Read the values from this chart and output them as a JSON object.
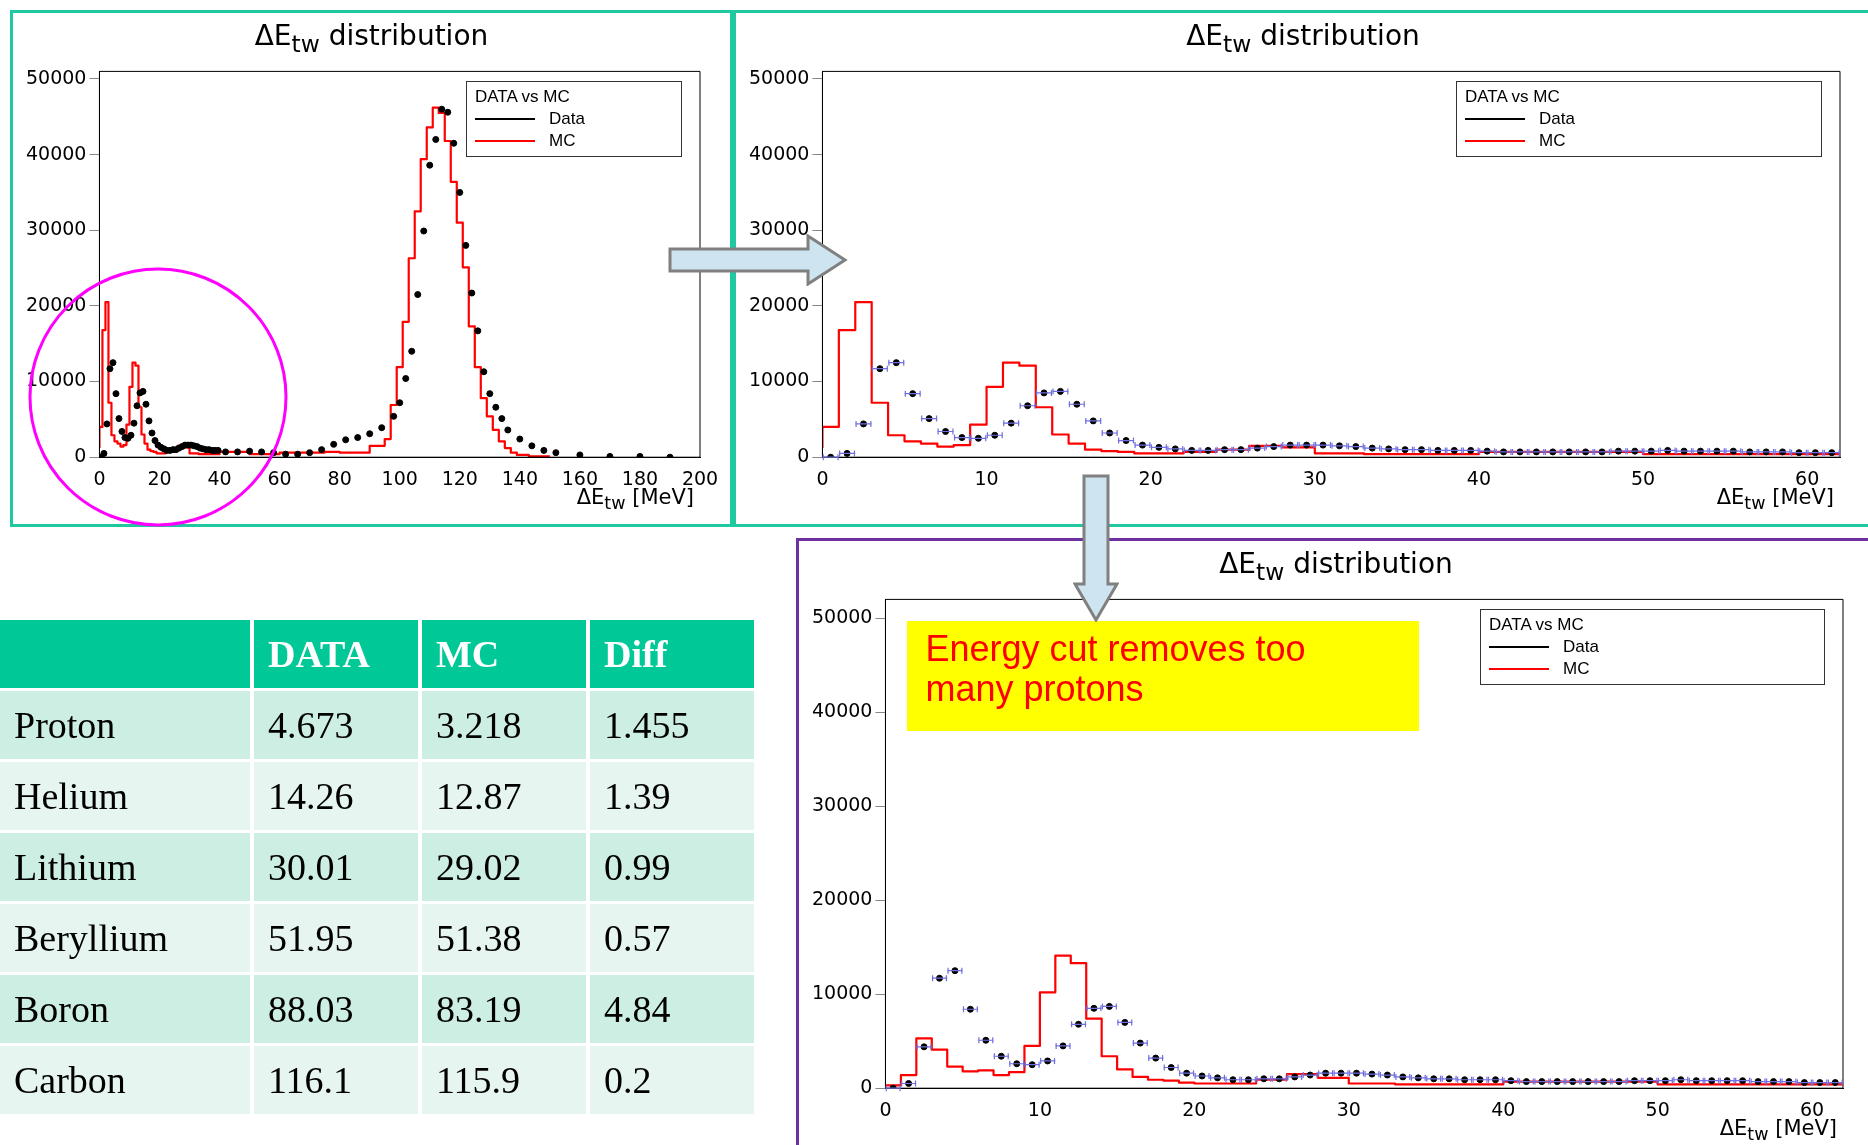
{
  "chart_data": [
    {
      "type": "step",
      "title": "ΔE$_{tw}$ distribution",
      "xlabel": "ΔE$_{tw}$ [MeV]",
      "legend_title": "DATA vs MC",
      "legend": "top right",
      "xlim": [
        0,
        200
      ],
      "ylim": [
        0,
        51000
      ],
      "xticks": [
        0,
        20,
        40,
        60,
        80,
        100,
        120,
        140,
        160,
        180,
        200
      ],
      "yticks": [
        0,
        10000,
        20000,
        30000,
        40000,
        50000
      ],
      "series": [
        {
          "name": "Data",
          "type": "scatter",
          "marker": "circle",
          "color": "#000000",
          "x": [
            0.5,
            1.5,
            2.5,
            3.5,
            4.5,
            5.5,
            6.5,
            7.5,
            8.5,
            9.5,
            10.5,
            11.5,
            12.5,
            13.5,
            14.5,
            15.5,
            16.5,
            17.5,
            18.5,
            19.5,
            20.5,
            21.5,
            22.5,
            23.5,
            24.5,
            25.5,
            26.5,
            27.5,
            28.5,
            29.5,
            30.5,
            31.5,
            32.5,
            33.5,
            34.5,
            35.5,
            36.5,
            37.5,
            38.5,
            39.5,
            42,
            46,
            50,
            54,
            58,
            62,
            66,
            70,
            74,
            78,
            82,
            86,
            90,
            94,
            98,
            100,
            102,
            104,
            106,
            108,
            110,
            112,
            114,
            116,
            118,
            120,
            122,
            124,
            126,
            128,
            130,
            132,
            134,
            136,
            140,
            144,
            148,
            152,
            160,
            170,
            180,
            190
          ],
          "values": [
            0,
            500,
            4400,
            11700,
            12500,
            8400,
            5100,
            3400,
            2600,
            2500,
            2900,
            4500,
            6800,
            8500,
            8700,
            7000,
            4800,
            3200,
            2200,
            1600,
            1300,
            1100,
            900,
            900,
            1000,
            1000,
            1200,
            1400,
            1600,
            1600,
            1600,
            1500,
            1400,
            1200,
            1100,
            1000,
            1000,
            900,
            900,
            900,
            700,
            700,
            800,
            700,
            600,
            400,
            400,
            600,
            1000,
            1700,
            2300,
            2600,
            3100,
            3900,
            5400,
            7200,
            10400,
            14000,
            21500,
            29900,
            38600,
            42000,
            46000,
            45600,
            41500,
            35000,
            28000,
            21700,
            16700,
            11300,
            8400,
            6600,
            5100,
            3600,
            2400,
            1500,
            900,
            600,
            300,
            100,
            100,
            0
          ]
        },
        {
          "name": "MC",
          "type": "step",
          "color": "#ff0000",
          "x": [
            0,
            1,
            2,
            3,
            4,
            5,
            6,
            7,
            8,
            9,
            10,
            11,
            12,
            13,
            14,
            15,
            16,
            17,
            18,
            19,
            20,
            22,
            24,
            26,
            28,
            30,
            33,
            40,
            50,
            52,
            60,
            75,
            80,
            90,
            95,
            97,
            99,
            101,
            103,
            105,
            107,
            109,
            111,
            113,
            115,
            117,
            119,
            121,
            123,
            125,
            127,
            129,
            131,
            133,
            135,
            137,
            139,
            143,
            150
          ],
          "values": [
            1200,
            4000,
            16800,
            20500,
            7200,
            2900,
            2100,
            1800,
            1400,
            1600,
            4300,
            9300,
            12500,
            12100,
            6600,
            3000,
            1800,
            1000,
            800,
            700,
            500,
            500,
            700,
            1000,
            1500,
            1300,
            500,
            400,
            700,
            400,
            400,
            600,
            700,
            600,
            1500,
            2400,
            6900,
            11900,
            17900,
            26300,
            32500,
            39400,
            43600,
            46200,
            45500,
            41800,
            36400,
            31000,
            25100,
            17300,
            11900,
            7800,
            5400,
            3600,
            2100,
            1200,
            600,
            300,
            100
          ]
        }
      ]
    },
    {
      "type": "step",
      "title": "ΔE$_{tw}$ distribution",
      "xlabel": "ΔE$_{tw}$ [MeV]",
      "legend_title": "DATA vs MC",
      "legend": "top right",
      "xlim": [
        0,
        62
      ],
      "ylim": [
        0,
        51000
      ],
      "xticks": [
        0,
        10,
        20,
        30,
        40,
        50,
        60
      ],
      "yticks": [
        0,
        10000,
        20000,
        30000,
        40000,
        50000
      ],
      "series": [
        {
          "name": "Data",
          "type": "scatter",
          "marker": "circle",
          "color": "#000000",
          "x": [
            0.5,
            1.5,
            2.5,
            3.5,
            4.5,
            5.5,
            6.5,
            7.5,
            8.5,
            9.5,
            10.5,
            11.5,
            12.5,
            13.5,
            14.5,
            15.5,
            16.5,
            17.5,
            18.5,
            19.5,
            20.5,
            21.5,
            22.5,
            23.5,
            24.5,
            25.5,
            26.5,
            27.5,
            28.5,
            29.5,
            30.5,
            31.5,
            32.5,
            33.5,
            34.5,
            35.5,
            36.5,
            37.5,
            38.5,
            39.5,
            40.5,
            41.5,
            42.5,
            43.5,
            44.5,
            45.5,
            46.5,
            47.5,
            48.5,
            49.5,
            50.5,
            51.5,
            52.5,
            53.5,
            54.5,
            55.5,
            56.5,
            57.5,
            58.5,
            59.5,
            60.5,
            61.5
          ],
          "values": [
            0,
            500,
            4400,
            11700,
            12500,
            8400,
            5100,
            3400,
            2600,
            2500,
            2900,
            4500,
            6800,
            8500,
            8700,
            7000,
            4800,
            3200,
            2200,
            1600,
            1300,
            1100,
            900,
            900,
            1000,
            1000,
            1200,
            1400,
            1600,
            1600,
            1600,
            1500,
            1400,
            1200,
            1100,
            1000,
            1000,
            900,
            900,
            900,
            800,
            700,
            700,
            700,
            700,
            700,
            700,
            700,
            800,
            800,
            800,
            900,
            800,
            800,
            800,
            800,
            700,
            700,
            700,
            600,
            600,
            600
          ],
          "xerrors": [
            0.5,
            0.5,
            0.5,
            0.5,
            0.5,
            0.5,
            0.5,
            0.5,
            0.5,
            0.5,
            0.5,
            0.5,
            0.5,
            0.5,
            0.5,
            0.5,
            0.5,
            0.5,
            0.5,
            0.5,
            0.5,
            0.5,
            0.5,
            0.5,
            0.5,
            0.5,
            0.5,
            0.5,
            0.5,
            0.5,
            0.5,
            0.5,
            0.5,
            0.5,
            0.5,
            0.5,
            0.5,
            0.5,
            0.5,
            0.5,
            0.5,
            0.5,
            0.5,
            0.5,
            0.5,
            0.5,
            0.5,
            0.5,
            0.5,
            0.5,
            0.5,
            0.5,
            0.5,
            0.5,
            0.5,
            0.5,
            0.5,
            0.5,
            0.5,
            0.5,
            0.5,
            0.5
          ]
        },
        {
          "name": "MC",
          "type": "step",
          "color": "#ff0000",
          "x": [
            0,
            1,
            2,
            3,
            4,
            5,
            6,
            7,
            8,
            9,
            10,
            11,
            12,
            13,
            14,
            15,
            16,
            17,
            18,
            19,
            20,
            22,
            24,
            26,
            28,
            30,
            33,
            40,
            50,
            52,
            62
          ],
          "values": [
            1200,
            4000,
            16800,
            20500,
            7200,
            2900,
            2100,
            1800,
            1400,
            1600,
            4300,
            9300,
            12500,
            12100,
            6600,
            3000,
            1800,
            1000,
            800,
            700,
            500,
            500,
            700,
            1000,
            1500,
            1300,
            500,
            400,
            700,
            400,
            400
          ]
        }
      ]
    },
    {
      "type": "step",
      "title": "ΔE$_{tw}$ distribution",
      "xlabel": "ΔE$_{tw}$ [MeV]",
      "legend_title": "DATA vs MC",
      "legend": "top right",
      "xlim": [
        0,
        62
      ],
      "ylim": [
        0,
        52000
      ],
      "xticks": [
        0,
        10,
        20,
        30,
        40,
        50,
        60
      ],
      "yticks": [
        0,
        10000,
        20000,
        30000,
        40000,
        50000
      ],
      "annotations": [
        "Energy cut removes too many protons"
      ],
      "series": [
        {
          "name": "Data",
          "type": "scatter",
          "marker": "circle",
          "color": "#000000",
          "x": [
            0.5,
            1.5,
            2.5,
            3.5,
            4.5,
            5.5,
            6.5,
            7.5,
            8.5,
            9.5,
            10.5,
            11.5,
            12.5,
            13.5,
            14.5,
            15.5,
            16.5,
            17.5,
            18.5,
            19.5,
            20.5,
            21.5,
            22.5,
            23.5,
            24.5,
            25.5,
            26.5,
            27.5,
            28.5,
            29.5,
            30.5,
            31.5,
            32.5,
            33.5,
            34.5,
            35.5,
            36.5,
            37.5,
            38.5,
            39.5,
            40.5,
            41.5,
            42.5,
            43.5,
            44.5,
            45.5,
            46.5,
            47.5,
            48.5,
            49.5,
            50.5,
            51.5,
            52.5,
            53.5,
            54.5,
            55.5,
            56.5,
            57.5,
            58.5,
            59.5,
            60.5,
            61.5
          ],
          "values": [
            0,
            500,
            4400,
            11700,
            12500,
            8400,
            5100,
            3400,
            2600,
            2500,
            2900,
            4500,
            6800,
            8500,
            8700,
            7000,
            4800,
            3200,
            2200,
            1600,
            1300,
            1100,
            900,
            900,
            1000,
            1000,
            1200,
            1400,
            1600,
            1600,
            1600,
            1500,
            1400,
            1200,
            1100,
            1000,
            1000,
            900,
            900,
            900,
            800,
            700,
            700,
            700,
            700,
            700,
            700,
            700,
            800,
            800,
            800,
            900,
            800,
            800,
            800,
            800,
            700,
            700,
            700,
            600,
            600,
            600
          ],
          "xerrors": [
            0.5,
            0.5,
            0.5,
            0.5,
            0.5,
            0.5,
            0.5,
            0.5,
            0.5,
            0.5,
            0.5,
            0.5,
            0.5,
            0.5,
            0.5,
            0.5,
            0.5,
            0.5,
            0.5,
            0.5,
            0.5,
            0.5,
            0.5,
            0.5,
            0.5,
            0.5,
            0.5,
            0.5,
            0.5,
            0.5,
            0.5,
            0.5,
            0.5,
            0.5,
            0.5,
            0.5,
            0.5,
            0.5,
            0.5,
            0.5,
            0.5,
            0.5,
            0.5,
            0.5,
            0.5,
            0.5,
            0.5,
            0.5,
            0.5,
            0.5,
            0.5,
            0.5,
            0.5,
            0.5,
            0.5,
            0.5,
            0.5,
            0.5,
            0.5,
            0.5,
            0.5,
            0.5
          ]
        },
        {
          "name": "MC",
          "type": "step",
          "color": "#ff0000",
          "x": [
            0,
            1,
            2,
            3,
            4,
            5,
            6,
            7,
            8,
            9,
            10,
            11,
            12,
            13,
            14,
            15,
            16,
            17,
            18,
            19,
            20,
            22,
            24,
            26,
            28,
            30,
            33,
            40,
            50,
            52,
            62
          ],
          "values": [
            0,
            300,
            1400,
            5300,
            4100,
            2300,
            1800,
            1900,
            1400,
            1700,
            4500,
            10200,
            14100,
            13300,
            7400,
            3400,
            2000,
            1200,
            900,
            800,
            600,
            500,
            500,
            900,
            1500,
            1100,
            500,
            400,
            700,
            400,
            400
          ]
        }
      ]
    },
    {
      "type": "heatmap",
      "data_labels": true,
      "categories": [
        "DATA",
        "MC",
        "Diff"
      ],
      "y_categories": [
        "Proton",
        "Helium",
        "Lithium",
        "Beryllium",
        "Boron",
        "Carbon"
      ],
      "cells": [
        [
          4.673,
          3.218,
          1.455
        ],
        [
          14.26,
          12.87,
          1.39
        ],
        [
          30.01,
          29.02,
          0.99
        ],
        [
          51.95,
          51.38,
          0.57
        ],
        [
          88.03,
          83.19,
          4.84
        ],
        [
          116.1,
          115.9,
          0.2
        ]
      ]
    }
  ]
}
